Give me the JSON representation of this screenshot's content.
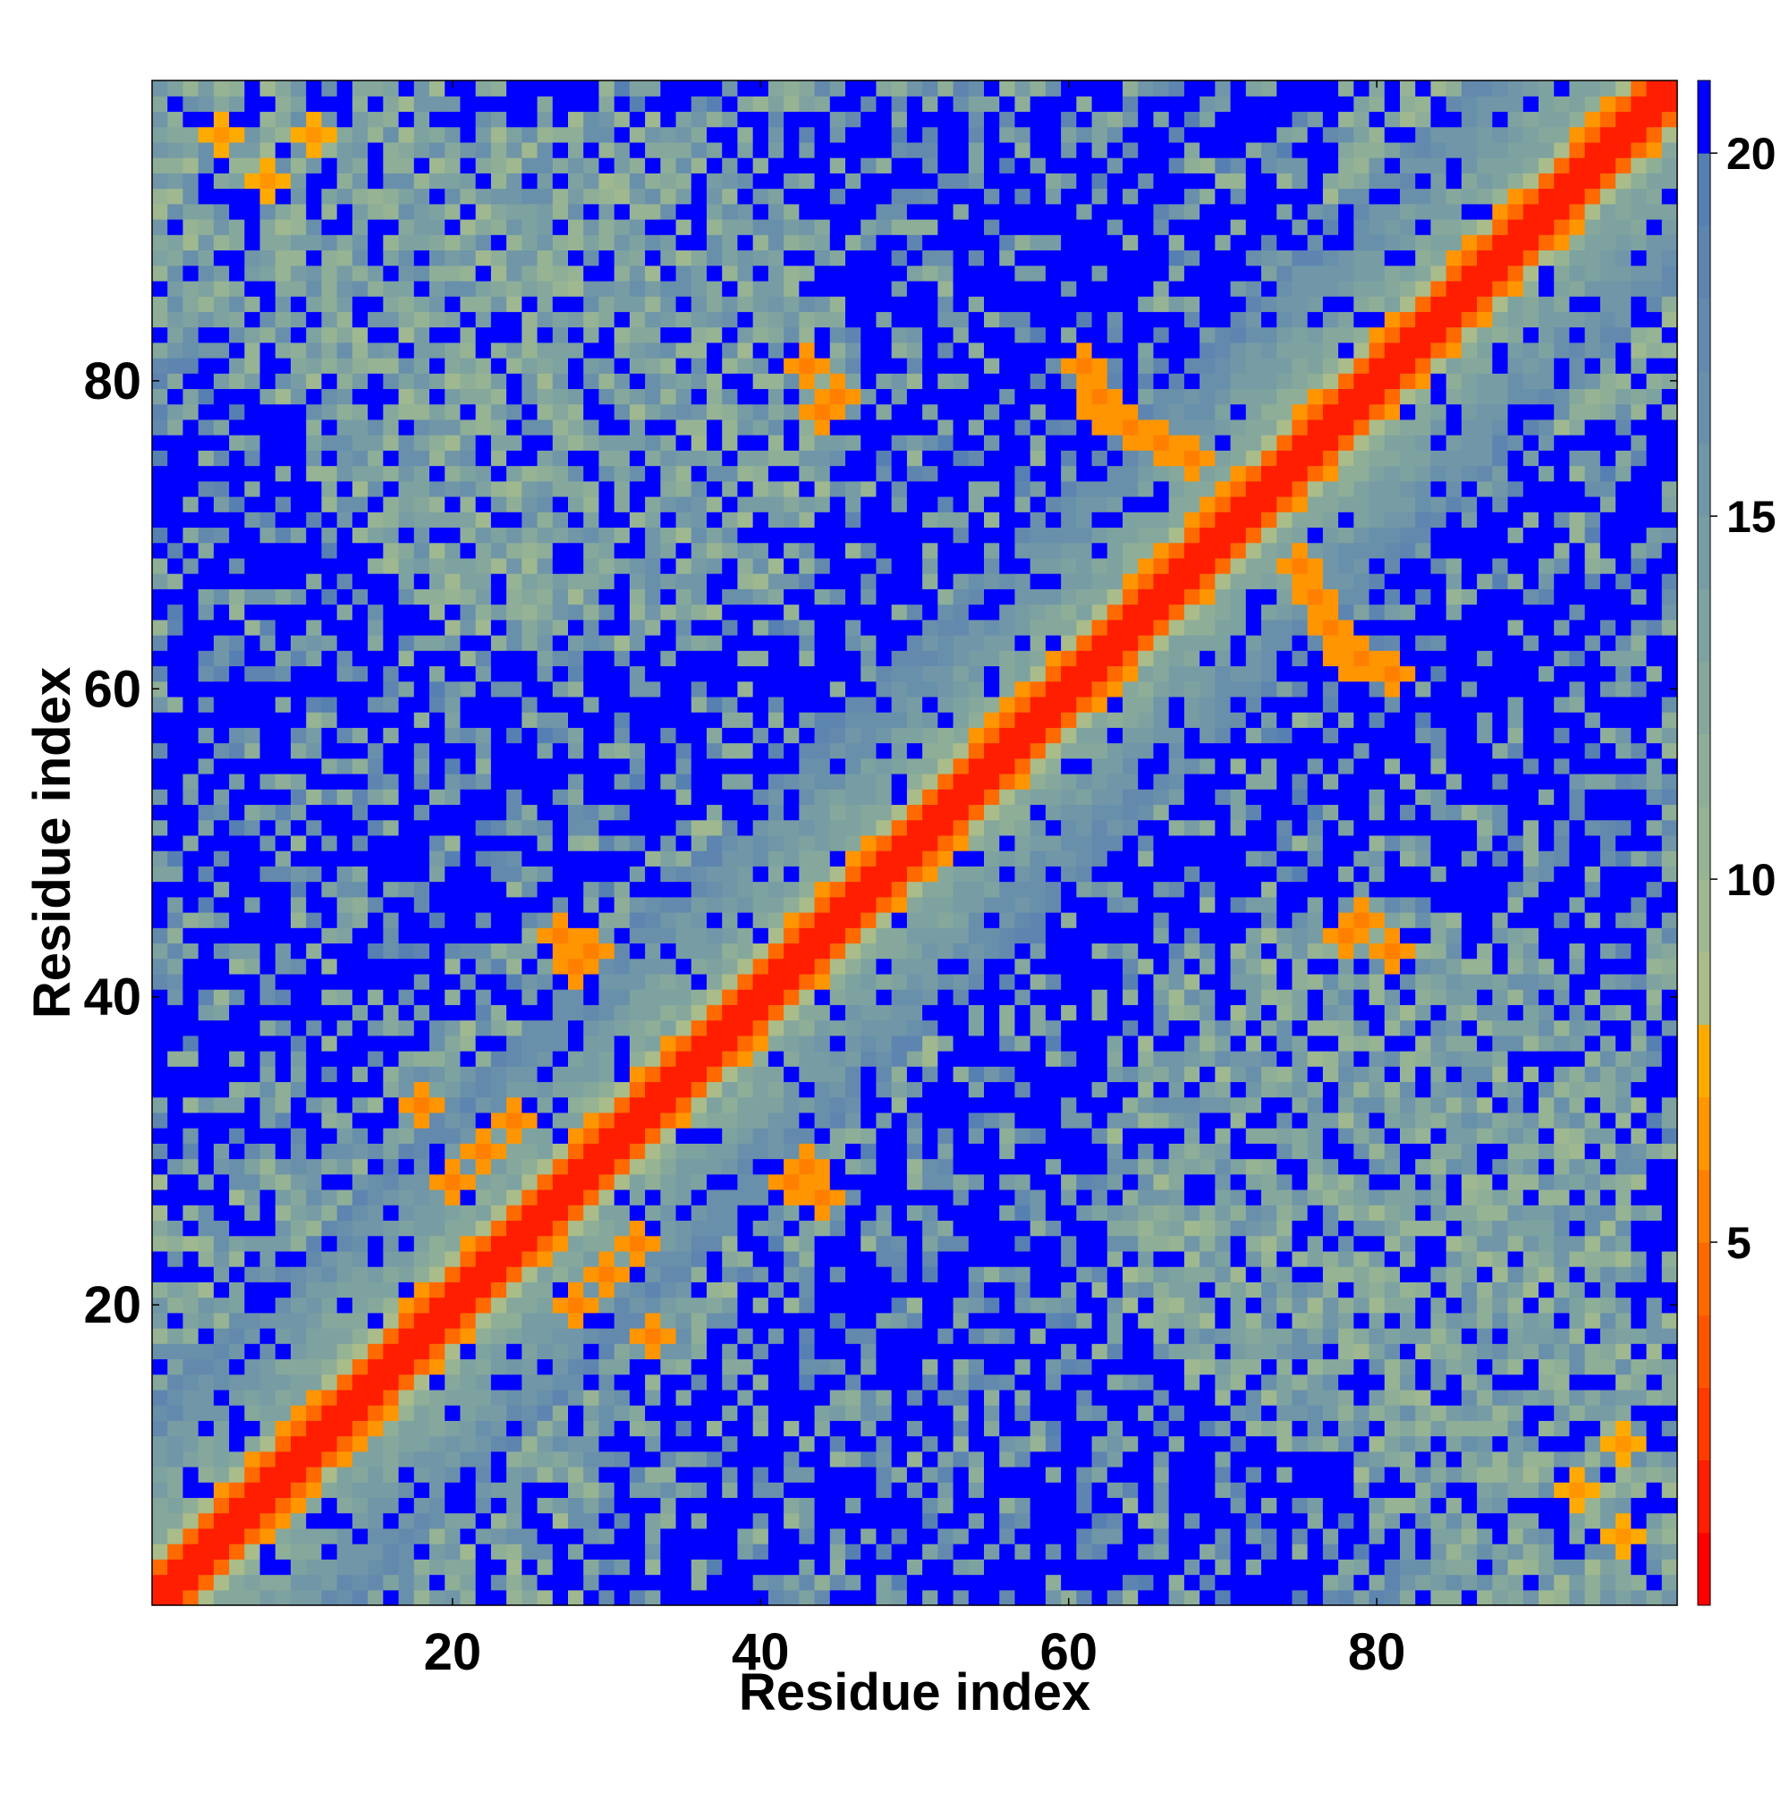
{
  "chart_data": {
    "type": "heatmap",
    "title": "",
    "xlabel": "Residue index",
    "ylabel": "Residue index",
    "n_residues": 99,
    "xlim": [
      1,
      99
    ],
    "ylim": [
      1,
      99
    ],
    "x_ticks": [
      20,
      40,
      60,
      80
    ],
    "y_ticks": [
      20,
      40,
      60,
      80
    ],
    "x_tick_labels": [
      "20",
      "40",
      "60",
      "80"
    ],
    "y_tick_labels": [
      "20",
      "40",
      "60",
      "80"
    ],
    "grid": false,
    "symmetric": true,
    "value_units": "distance",
    "colorbar": {
      "range": [
        0,
        21
      ],
      "ticks": [
        5,
        10,
        15,
        20
      ],
      "tick_labels": [
        "5",
        "10",
        "15",
        "20"
      ],
      "placement": "right",
      "bins": [
        {
          "max": 1,
          "color": "#ff0000"
        },
        {
          "max": 2,
          "color": "#ff1e00"
        },
        {
          "max": 3,
          "color": "#ff3c00"
        },
        {
          "max": 4,
          "color": "#ff5500"
        },
        {
          "max": 5,
          "color": "#ff6a00"
        },
        {
          "max": 6,
          "color": "#ff8000"
        },
        {
          "max": 7,
          "color": "#ff9500"
        },
        {
          "max": 8,
          "color": "#ffaa00"
        },
        {
          "max": 9,
          "color": "#a9bc8a"
        },
        {
          "max": 10,
          "color": "#9fb88f"
        },
        {
          "max": 11,
          "color": "#96b394"
        },
        {
          "max": 12,
          "color": "#8eae98"
        },
        {
          "max": 13,
          "color": "#86a89c"
        },
        {
          "max": 14,
          "color": "#7ea2a0"
        },
        {
          "max": 15,
          "color": "#779ca4"
        },
        {
          "max": 16,
          "color": "#7096a7"
        },
        {
          "max": 17,
          "color": "#6990aa"
        },
        {
          "max": 18,
          "color": "#638aad"
        },
        {
          "max": 19,
          "color": "#5d85b0"
        },
        {
          "max": 20,
          "color": "#5780b2"
        },
        {
          "max": 21,
          "color": "#0000ff"
        }
      ]
    },
    "features": {
      "background_value": 21,
      "diagonal_band": {
        "core_distance": 2,
        "shoulder_distances": [
          5,
          7
        ],
        "fade_to": 16
      },
      "close_contacts": [
        {
          "i": 24,
          "j": 32,
          "value": 6
        },
        {
          "i": 22,
          "j": 30,
          "value": 6
        },
        {
          "i": 20,
          "j": 28,
          "value": 6
        },
        {
          "i": 18,
          "j": 33,
          "value": 6
        },
        {
          "i": 28,
          "j": 43,
          "value": 6
        },
        {
          "i": 27,
          "j": 44,
          "value": 6
        },
        {
          "i": 42,
          "j": 28,
          "value": 6
        },
        {
          "i": 43,
          "j": 29,
          "value": 6
        },
        {
          "i": 44,
          "j": 78,
          "value": 6
        },
        {
          "i": 45,
          "j": 79,
          "value": 6
        },
        {
          "i": 62,
          "j": 78,
          "value": 6
        },
        {
          "i": 64,
          "j": 77,
          "value": 6
        },
        {
          "i": 66,
          "j": 76,
          "value": 6
        },
        {
          "i": 68,
          "j": 75,
          "value": 6
        },
        {
          "i": 77,
          "j": 64,
          "value": 6
        },
        {
          "i": 79,
          "j": 62,
          "value": 6
        },
        {
          "i": 81,
          "j": 61,
          "value": 6
        },
        {
          "i": 79,
          "j": 45,
          "value": 6
        },
        {
          "i": 81,
          "j": 43,
          "value": 6
        },
        {
          "i": 93,
          "j": 8,
          "value": 7
        },
        {
          "i": 96,
          "j": 5,
          "value": 7
        },
        {
          "i": 8,
          "j": 93,
          "value": 7
        },
        {
          "i": 11,
          "j": 96,
          "value": 7
        }
      ]
    }
  }
}
